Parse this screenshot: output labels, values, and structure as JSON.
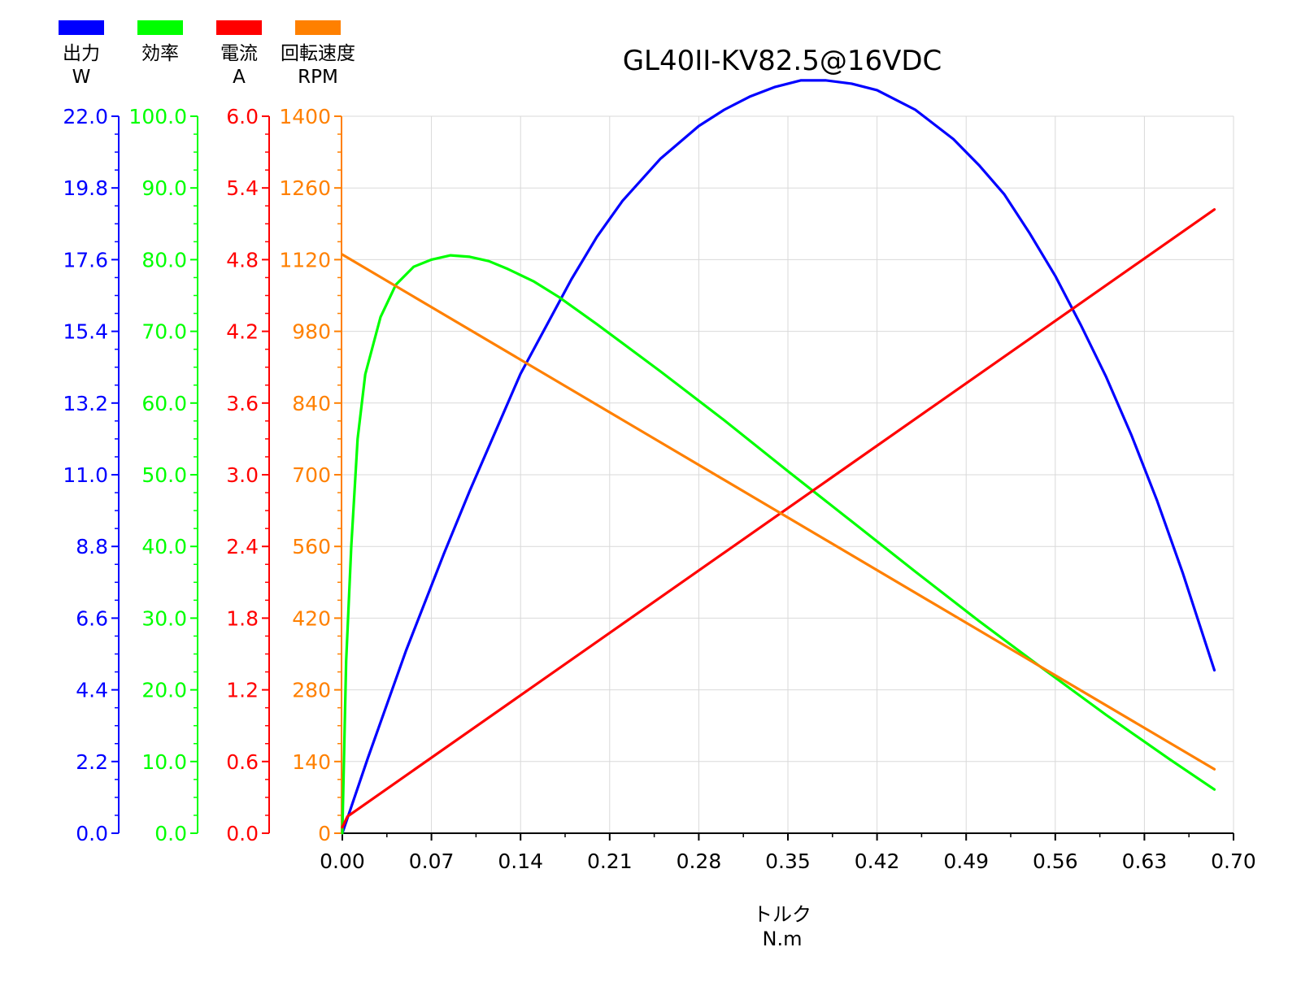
{
  "chart_data": {
    "type": "line",
    "title": "GL40II-KV82.5@16VDC",
    "xlabel": "トルク",
    "xunit": "N.m",
    "xlim": [
      0,
      0.7
    ],
    "xticks": [
      "0.00",
      "0.07",
      "0.14",
      "0.21",
      "0.28",
      "0.35",
      "0.42",
      "0.49",
      "0.56",
      "0.63",
      "0.70"
    ],
    "grid": true,
    "legend_position": "top-left",
    "axes": [
      {
        "id": "power",
        "label": "出力",
        "unit": "W",
        "color": "#0000ff",
        "ylim": [
          0,
          22
        ],
        "ticks": [
          "0.0",
          "2.2",
          "4.4",
          "6.6",
          "8.8",
          "11.0",
          "13.2",
          "15.4",
          "17.6",
          "19.8",
          "22.0"
        ]
      },
      {
        "id": "efficiency",
        "label": "効率",
        "unit": "",
        "color": "#00ff00",
        "ylim": [
          0,
          100
        ],
        "ticks": [
          "0.0",
          "10.0",
          "20.0",
          "30.0",
          "40.0",
          "50.0",
          "60.0",
          "70.0",
          "80.0",
          "90.0",
          "100.0"
        ]
      },
      {
        "id": "current",
        "label": "電流",
        "unit": "A",
        "color": "#ff0000",
        "ylim": [
          0,
          6
        ],
        "ticks": [
          "0.0",
          "0.6",
          "1.2",
          "1.8",
          "2.4",
          "3.0",
          "3.6",
          "4.2",
          "4.8",
          "5.4",
          "6.0"
        ]
      },
      {
        "id": "speed",
        "label": "回転速度",
        "unit": "RPM",
        "color": "#ff8000",
        "ylim": [
          0,
          1400
        ],
        "ticks": [
          "0",
          "140",
          "280",
          "420",
          "560",
          "700",
          "840",
          "980",
          "1120",
          "1260",
          "1400"
        ]
      }
    ],
    "series": [
      {
        "name": "出力",
        "axis": "power",
        "color": "#0000ff",
        "x": [
          0,
          0.02,
          0.05,
          0.08,
          0.1,
          0.14,
          0.18,
          0.2,
          0.22,
          0.25,
          0.28,
          0.3,
          0.32,
          0.34,
          0.36,
          0.38,
          0.4,
          0.42,
          0.45,
          0.48,
          0.5,
          0.52,
          0.54,
          0.56,
          0.58,
          0.6,
          0.62,
          0.64,
          0.66,
          0.685
        ],
        "values": [
          0,
          2.3,
          5.6,
          8.6,
          10.5,
          14.1,
          17.0,
          18.3,
          19.4,
          20.7,
          21.7,
          22.2,
          22.6,
          22.9,
          23.1,
          23.1,
          23.0,
          22.8,
          22.2,
          21.3,
          20.5,
          19.6,
          18.4,
          17.1,
          15.6,
          14.0,
          12.2,
          10.2,
          8.0,
          5.0
        ]
      },
      {
        "name": "効率",
        "axis": "efficiency",
        "color": "#00ff00",
        "x": [
          0,
          0.003,
          0.007,
          0.012,
          0.018,
          0.03,
          0.042,
          0.056,
          0.07,
          0.085,
          0.1,
          0.115,
          0.13,
          0.15,
          0.17,
          0.2,
          0.25,
          0.3,
          0.35,
          0.4,
          0.45,
          0.5,
          0.55,
          0.6,
          0.65,
          0.685
        ],
        "values": [
          0,
          24,
          40,
          55,
          64,
          72,
          76.5,
          79,
          80,
          80.6,
          80.4,
          79.8,
          78.7,
          77,
          74.8,
          71,
          64.4,
          57.6,
          50.5,
          43.5,
          36.5,
          29.6,
          23,
          16.5,
          10.3,
          6.1
        ]
      },
      {
        "name": "電流",
        "axis": "current",
        "color": "#ff0000",
        "x": [
          0,
          0.004,
          0.685
        ],
        "values": [
          0.05,
          0.14,
          5.22
        ]
      },
      {
        "name": "回転速度",
        "axis": "speed",
        "color": "#ff8000",
        "x": [
          0,
          0.685
        ],
        "values": [
          1130,
          125
        ]
      }
    ]
  }
}
